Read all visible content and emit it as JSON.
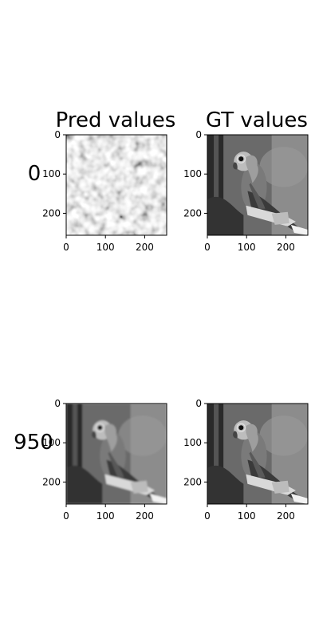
{
  "figure": {
    "column_titles": [
      "Pred values",
      "GT values"
    ],
    "row_labels": [
      "0",
      "950"
    ]
  },
  "chart_data": [
    {
      "type": "image",
      "title": "Pred values",
      "row_label": "0",
      "content": "noisy grayscale blotch pattern (early prediction)",
      "xticks": [
        "0",
        "100",
        "200"
      ],
      "yticks": [
        "0",
        "100",
        "200"
      ],
      "xlim": [
        0,
        256
      ],
      "ylim": [
        256,
        0
      ]
    },
    {
      "type": "image",
      "title": "GT values",
      "row_label": "0",
      "content": "grayscale photo of a parrot perched on a branch",
      "xticks": [
        "0",
        "100",
        "200"
      ],
      "yticks": [
        "0",
        "100",
        "200"
      ],
      "xlim": [
        0,
        256
      ],
      "ylim": [
        256,
        0
      ]
    },
    {
      "type": "image",
      "title": "Pred values",
      "row_label": "950",
      "content": "slightly blurred reconstruction of the parrot photo",
      "xticks": [
        "0",
        "100",
        "200"
      ],
      "yticks": [
        "0",
        "100",
        "200"
      ],
      "xlim": [
        0,
        256
      ],
      "ylim": [
        256,
        0
      ]
    },
    {
      "type": "image",
      "title": "GT values",
      "row_label": "950",
      "content": "grayscale photo of a parrot perched on a branch",
      "xticks": [
        "0",
        "100",
        "200"
      ],
      "yticks": [
        "0",
        "100",
        "200"
      ],
      "xlim": [
        0,
        256
      ],
      "ylim": [
        256,
        0
      ]
    }
  ]
}
